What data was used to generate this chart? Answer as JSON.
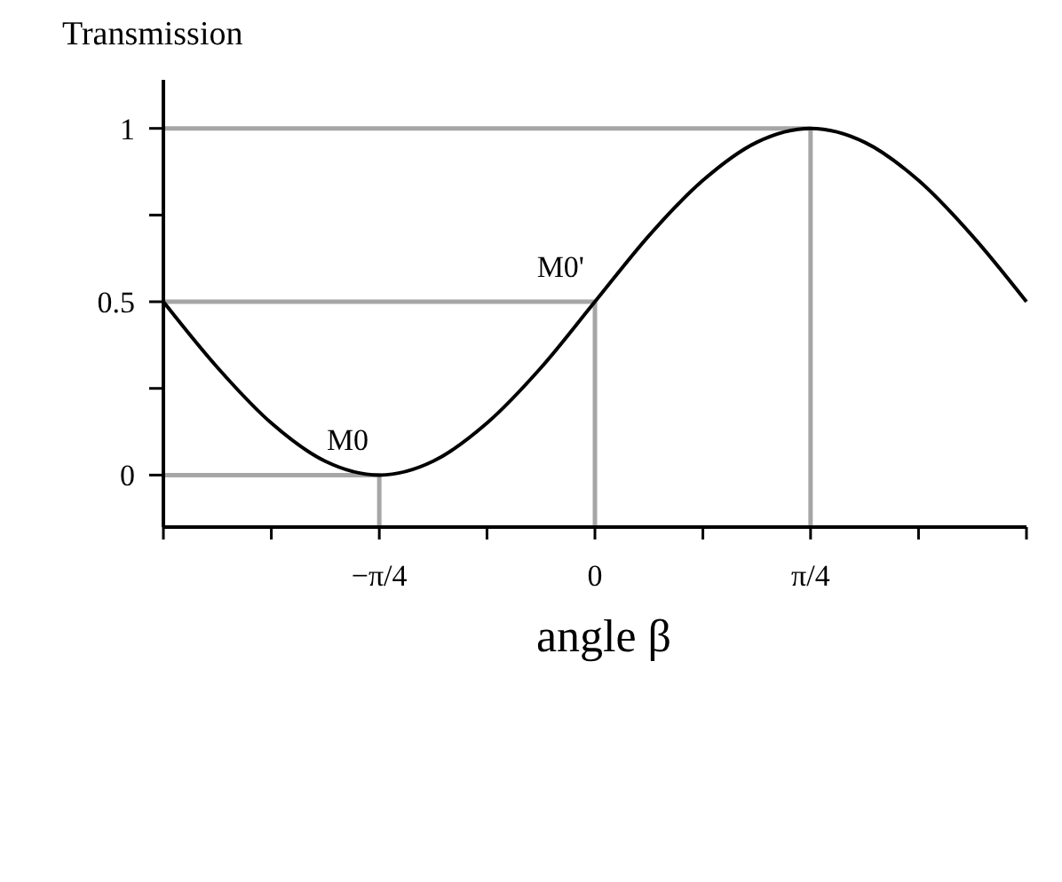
{
  "chart_data": {
    "type": "line",
    "xlabel": "angle β",
    "ylabel": "Transmission",
    "xlim": [
      -1.571,
      1.571
    ],
    "ylim": [
      -0.15,
      1.14
    ],
    "xticks": [
      {
        "value": -1.571,
        "label": null
      },
      {
        "value": -1.178,
        "label": null
      },
      {
        "value": -0.785,
        "label": "−π/4"
      },
      {
        "value": -0.393,
        "label": null
      },
      0,
      {
        "value": 0.393,
        "label": null
      },
      {
        "value": 0.785,
        "label": "π/4"
      },
      {
        "value": 1.178,
        "label": null
      },
      {
        "value": 1.571,
        "label": null
      }
    ],
    "yticks": [
      0,
      {
        "value": 0.25,
        "label": null
      },
      0.5,
      {
        "value": 0.75,
        "label": null
      },
      1
    ],
    "grid": false,
    "marker": "none",
    "series": [
      {
        "color": "#a6a6a6",
        "x": [
          -1.571,
          -0.785,
          -0.785
        ],
        "values": [
          0,
          0,
          -0.15
        ]
      },
      {
        "color": "#a6a6a6",
        "x": [
          -1.571,
          0,
          0
        ],
        "values": [
          0.5,
          0.5,
          -0.15
        ]
      },
      {
        "color": "#a6a6a6",
        "x": [
          -1.571,
          0.785,
          0.785
        ],
        "values": [
          1,
          1,
          -0.15
        ]
      },
      {
        "color": "#000000",
        "x": [
          -1.571,
          -1.374,
          -1.178,
          -0.982,
          -0.785,
          -0.589,
          -0.393,
          -0.196,
          0,
          0.196,
          0.393,
          0.589,
          0.785,
          0.982,
          1.178,
          1.374,
          1.571
        ],
        "values": [
          0.5,
          0.31,
          0.15,
          0.04,
          0,
          0.04,
          0.15,
          0.31,
          0.5,
          0.69,
          0.85,
          0.96,
          1,
          0.96,
          0.85,
          0.69,
          0.5
        ]
      }
    ],
    "annotations": [
      {
        "text": "M0",
        "x": -0.785,
        "y": 0
      },
      {
        "text": "M0'",
        "x": 0,
        "y": 0.5
      }
    ]
  }
}
